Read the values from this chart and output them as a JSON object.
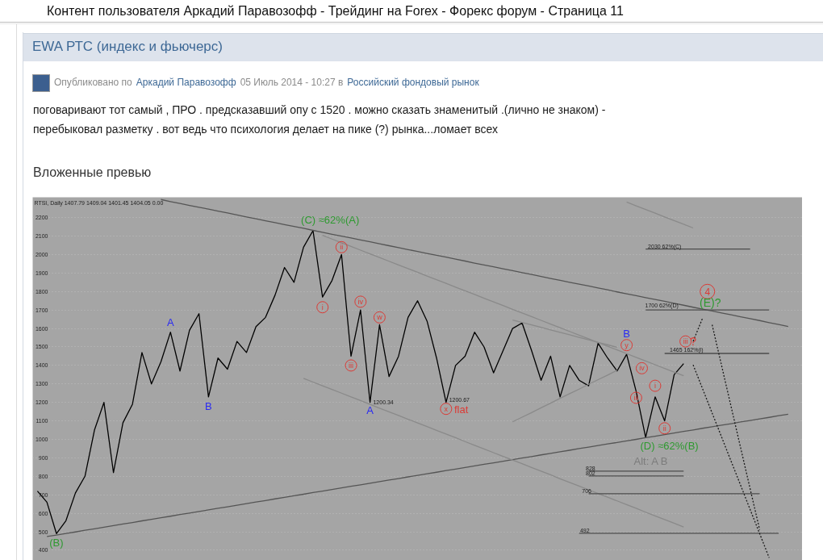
{
  "chart_data": {
    "type": "line",
    "title": "EWA РТС (индекс и фьючерс)",
    "subtitle": "RTSI, Daily 1407.79 1409.04 1401.45 1404.05 0.00",
    "annotations": [
      "Контент пользователя Аркадий Паравозофф - Трейдинг на Forex - Форекс форум - Страница 11",
      "Опубликовано по",
      "Аркадий Паравозофф",
      "05 Июль 2014 - 10:27 в",
      "Российский фондовый рынок",
      "поговаривают тот самый , ПРО . предсказавший опу с 1520 . можно сказать знаменитый .(лично не знаком) -",
      "перебыковал разметку . вот ведь что психология делает на пике (?) рынка...ломает всех",
      "Вложенные превью",
      "(C) ≈62%(A)",
      {
        "text": "i",
        "y": 1715
      },
      {
        "text": "ii",
        "y": 2040
      },
      {
        "text": "iii",
        "y": 1400
      },
      {
        "text": "iv",
        "y": 1745
      },
      {
        "text": "w",
        "y": 1660
      },
      "A",
      "1200.34",
      {
        "text": "x",
        "y": 1165
      },
      "flat",
      "1200.67",
      "(B)",
      "A",
      "B",
      "B",
      {
        "text": "y",
        "y": 1510
      },
      {
        "text": "iii",
        "y": 1225
      },
      {
        "text": "iv",
        "y": 1385
      },
      {
        "text": "i",
        "y": 1290
      },
      {
        "text": "ii",
        "y": 1060
      },
      {
        "text": "iii",
        "y": 1530
      },
      {
        "text": "?",
        "y": 1530
      },
      {
        "text": "4",
        "y": 1800
      },
      "(E)?",
      {
        "text": "2030 62%(C)",
        "y": 2045
      },
      {
        "text": "1700 62%(D)",
        "y": 1725
      },
      {
        "text": "1465 162%(i)",
        "y": 1484
      },
      "(D) ≈62%(B)",
      "Alt: A B",
      {
        "text": "828",
        "y": 844
      },
      {
        "text": "802",
        "y": 816
      },
      {
        "text": "706",
        "y": 720
      },
      {
        "text": "492",
        "y": 506
      }
    ],
    "categories": [
      null,
      null,
      null,
      null,
      null,
      null,
      null,
      null,
      null,
      null,
      null,
      null,
      null,
      null,
      null,
      null,
      null,
      null,
      null,
      null,
      null,
      null,
      null,
      null,
      null,
      null,
      null,
      null,
      null,
      null,
      null,
      null,
      null,
      null,
      null,
      null,
      null,
      null,
      null,
      null,
      null,
      null,
      null,
      null,
      null,
      null,
      null,
      null,
      null,
      null,
      null,
      null,
      null,
      null,
      null,
      null,
      null,
      null,
      null,
      null,
      null,
      null,
      null,
      null,
      null,
      null,
      null,
      null,
      null,
      null,
      null,
      null,
      null,
      null,
      null,
      null,
      null,
      null,
      null,
      null,
      null
    ],
    "ylim": [
      345,
      2310
    ],
    "yticks": [
      400,
      500,
      600,
      700,
      800,
      900,
      1000,
      1100,
      1200,
      1300,
      1400,
      1500,
      1600,
      1700,
      1800,
      1900,
      2000,
      2100,
      2200
    ],
    "tick_labels": "y",
    "grid": "y",
    "series": [
      {
        "color": "#000000",
        "values": [
          720,
          660,
          490,
          560,
          710,
          800,
          1050,
          1200,
          820,
          1090,
          1190,
          1470,
          1300,
          1420,
          1580,
          1370,
          1590,
          1680,
          1230,
          1440,
          1380,
          1530,
          1470,
          1610,
          1660,
          1780,
          1930,
          1850,
          2040,
          2130,
          1770,
          1860,
          2000,
          1450,
          1700,
          1200,
          1620,
          1340,
          1450,
          1660,
          1750,
          1640,
          1440,
          1200,
          1400,
          1450,
          1580,
          1500,
          1360,
          1480,
          1600,
          1630,
          1480,
          1320,
          1450,
          1230,
          1400,
          1320,
          1290,
          1520,
          1440,
          1370,
          1460,
          1260,
          1010,
          1230,
          1100,
          1350,
          1410,
          null,
          null,
          null,
          null,
          null,
          null,
          null,
          null,
          null,
          null,
          null,
          null
        ]
      },
      {
        "color": "#555555",
        "values": [
          null,
          null,
          null,
          null,
          null,
          null,
          null,
          null,
          null,
          null,
          null,
          null,
          null,
          2298,
          2287,
          2277,
          2266,
          2256,
          2246,
          2235,
          2225,
          2214,
          2204,
          2194,
          2183,
          2173,
          2162,
          2152,
          2142,
          2131,
          2121,
          2110,
          2100,
          2090,
          2079,
          2069,
          2058,
          2048,
          2038,
          2027,
          2017,
          2006,
          1996,
          1986,
          1975,
          1965,
          1954,
          1944,
          1934,
          1923,
          1913,
          1902,
          1892,
          1882,
          1871,
          1861,
          1850,
          1840,
          1830,
          1819,
          1809,
          1798,
          1788,
          1778,
          1767,
          1757,
          1747,
          1736,
          1726,
          1715,
          1705,
          1695,
          1684,
          1674,
          1663,
          1653,
          1643,
          1632,
          1622,
          1611,
          null
        ]
      },
      {
        "color": "#555555",
        "values": [
          null,
          474,
          482,
          491,
          499,
          508,
          516,
          525,
          533,
          542,
          550,
          559,
          567,
          576,
          584,
          593,
          601,
          610,
          618,
          627,
          635,
          644,
          652,
          661,
          669,
          678,
          686,
          695,
          703,
          712,
          720,
          729,
          737,
          746,
          754,
          763,
          771,
          780,
          788,
          797,
          805,
          814,
          822,
          831,
          839,
          848,
          856,
          865,
          873,
          882,
          890,
          899,
          907,
          916,
          924,
          933,
          941,
          950,
          958,
          967,
          975,
          983,
          992,
          1000,
          1009,
          1017,
          1026,
          1034,
          1043,
          1051,
          1060,
          1068,
          1077,
          1085,
          1094,
          1102,
          1111,
          1119,
          1128,
          1136,
          null
        ]
      },
      {
        "color": "#8a8a8a",
        "values": [
          null,
          null,
          null,
          null,
          null,
          null,
          null,
          null,
          null,
          null,
          null,
          null,
          null,
          null,
          null,
          null,
          null,
          null,
          null,
          null,
          null,
          null,
          null,
          null,
          null,
          null,
          null,
          null,
          null,
          null,
          2104,
          2084,
          2064,
          2044,
          2024,
          2004,
          1984,
          1964,
          1944,
          1924,
          1904,
          1884,
          1864,
          1844,
          1824,
          1804,
          1784,
          1764,
          1744,
          1724,
          1704,
          1684,
          1664,
          1644,
          1624,
          1604,
          1584,
          1564,
          1544,
          1524,
          1504,
          1484,
          1464,
          1444,
          1424,
          1404,
          1384,
          1364,
          1344,
          null,
          null,
          null,
          null,
          null,
          null,
          null,
          null,
          null,
          null,
          null,
          null
        ]
      },
      {
        "color": "#8a8a8a",
        "values": [
          null,
          null,
          null,
          null,
          null,
          null,
          null,
          null,
          null,
          null,
          null,
          null,
          null,
          null,
          null,
          null,
          null,
          null,
          null,
          null,
          null,
          null,
          null,
          null,
          null,
          null,
          null,
          null,
          1330,
          1310,
          1290,
          1270,
          1250,
          1230,
          1210,
          1189,
          1169,
          1149,
          1129,
          1109,
          1089,
          1069,
          1049,
          1029,
          1009,
          988,
          968,
          948,
          928,
          908,
          888,
          868,
          848,
          828,
          808,
          787,
          767,
          747,
          727,
          707,
          687,
          667,
          647,
          627,
          606,
          586,
          566,
          546,
          526,
          null,
          null,
          null,
          null,
          null,
          null,
          null,
          null,
          null,
          null,
          null,
          null
        ]
      },
      {
        "color": "#8a8a8a",
        "values": [
          null,
          null,
          null,
          null,
          null,
          null,
          null,
          null,
          null,
          null,
          null,
          null,
          null,
          null,
          null,
          null,
          null,
          null,
          null,
          null,
          null,
          null,
          null,
          null,
          null,
          null,
          null,
          null,
          null,
          null,
          null,
          null,
          null,
          null,
          null,
          null,
          null,
          null,
          null,
          null,
          null,
          null,
          null,
          null,
          null,
          null,
          null,
          null,
          null,
          null,
          1646,
          1633,
          1619,
          1606,
          1592,
          1579,
          1566,
          1552,
          1539,
          1525,
          1512,
          1498,
          null,
          null,
          null,
          null,
          null,
          null,
          null,
          null,
          null,
          null,
          null,
          null,
          null,
          null,
          null,
          null,
          null,
          null,
          null
        ]
      },
      {
        "color": "#8a8a8a",
        "values": [
          null,
          null,
          null,
          null,
          null,
          null,
          null,
          null,
          null,
          null,
          null,
          null,
          null,
          null,
          null,
          null,
          null,
          null,
          null,
          null,
          null,
          null,
          null,
          null,
          null,
          null,
          null,
          null,
          null,
          null,
          null,
          null,
          null,
          null,
          null,
          null,
          null,
          null,
          null,
          null,
          null,
          null,
          null,
          null,
          null,
          null,
          null,
          null,
          null,
          null,
          1095,
          1120,
          1145,
          1171,
          1196,
          1222,
          1247,
          1272,
          1298,
          1323,
          1348,
          1374,
          null,
          null,
          null,
          null,
          null,
          null,
          null,
          null,
          null,
          null,
          null,
          null,
          null,
          null,
          null,
          null,
          null,
          null,
          null
        ]
      },
      {
        "color": "#8a8a8a",
        "values": [
          null,
          null,
          null,
          null,
          null,
          null,
          null,
          null,
          null,
          null,
          null,
          null,
          null,
          null,
          null,
          null,
          null,
          null,
          null,
          null,
          null,
          null,
          null,
          null,
          null,
          null,
          null,
          null,
          null,
          null,
          null,
          null,
          null,
          null,
          null,
          null,
          null,
          null,
          null,
          null,
          null,
          null,
          null,
          null,
          null,
          null,
          null,
          null,
          null,
          null,
          null,
          null,
          null,
          null,
          null,
          null,
          null,
          null,
          null,
          null,
          null,
          null,
          2284,
          2264,
          2244,
          2224,
          2204,
          2184,
          2164,
          2144,
          null,
          null,
          null,
          null,
          null,
          null,
          null,
          null,
          null,
          null,
          null
        ]
      },
      {
        "color": "#4d4d4d",
        "values": [
          null,
          null,
          null,
          null,
          null,
          null,
          null,
          null,
          null,
          null,
          null,
          null,
          null,
          null,
          null,
          null,
          null,
          null,
          null,
          null,
          null,
          null,
          null,
          null,
          null,
          null,
          null,
          null,
          null,
          null,
          null,
          null,
          null,
          null,
          null,
          null,
          null,
          null,
          null,
          null,
          null,
          null,
          null,
          null,
          null,
          null,
          null,
          null,
          null,
          null,
          null,
          null,
          null,
          null,
          null,
          null,
          null,
          null,
          null,
          null,
          null,
          null,
          null,
          null,
          2030,
          2030,
          2030,
          2030,
          2030,
          2030,
          2030,
          2030,
          2030,
          2030,
          2030,
          2030,
          null,
          null,
          null,
          null,
          null
        ]
      },
      {
        "color": "#4d4d4d",
        "values": [
          null,
          null,
          null,
          null,
          null,
          null,
          null,
          null,
          null,
          null,
          null,
          null,
          null,
          null,
          null,
          null,
          null,
          null,
          null,
          null,
          null,
          null,
          null,
          null,
          null,
          null,
          null,
          null,
          null,
          null,
          null,
          null,
          null,
          null,
          null,
          null,
          null,
          null,
          null,
          null,
          null,
          null,
          null,
          null,
          null,
          null,
          null,
          null,
          null,
          null,
          null,
          null,
          null,
          null,
          null,
          null,
          null,
          null,
          null,
          null,
          null,
          null,
          null,
          null,
          1700,
          1700,
          1700,
          1700,
          1700,
          1700,
          1700,
          1700,
          1700,
          1700,
          1700,
          1700,
          1700,
          1700,
          null,
          null,
          null
        ]
      },
      {
        "color": "#4d4d4d",
        "values": [
          null,
          null,
          null,
          null,
          null,
          null,
          null,
          null,
          null,
          null,
          null,
          null,
          null,
          null,
          null,
          null,
          null,
          null,
          null,
          null,
          null,
          null,
          null,
          null,
          null,
          null,
          null,
          null,
          null,
          null,
          null,
          null,
          null,
          null,
          null,
          null,
          null,
          null,
          null,
          null,
          null,
          null,
          null,
          null,
          null,
          null,
          null,
          null,
          null,
          null,
          null,
          null,
          null,
          null,
          null,
          null,
          null,
          null,
          null,
          null,
          null,
          null,
          null,
          null,
          null,
          null,
          1465,
          1465,
          1465,
          1465,
          1465,
          1465,
          1465,
          1465,
          1465,
          1465,
          1465,
          1465,
          null,
          null,
          null
        ]
      },
      {
        "color": "#4d4d4d",
        "values": [
          null,
          null,
          null,
          null,
          null,
          null,
          null,
          null,
          null,
          null,
          null,
          null,
          null,
          null,
          null,
          null,
          null,
          null,
          null,
          null,
          null,
          null,
          null,
          null,
          null,
          null,
          null,
          null,
          null,
          null,
          null,
          null,
          null,
          null,
          null,
          null,
          null,
          null,
          null,
          null,
          null,
          null,
          null,
          null,
          null,
          null,
          null,
          null,
          null,
          null,
          null,
          null,
          null,
          null,
          null,
          null,
          null,
          null,
          828,
          828,
          828,
          828,
          828,
          828,
          828,
          828,
          828,
          828,
          828,
          null,
          null,
          null,
          null,
          null,
          null,
          null,
          null,
          null,
          null,
          null,
          null
        ]
      },
      {
        "color": "#4d4d4d",
        "values": [
          null,
          null,
          null,
          null,
          null,
          null,
          null,
          null,
          null,
          null,
          null,
          null,
          null,
          null,
          null,
          null,
          null,
          null,
          null,
          null,
          null,
          null,
          null,
          null,
          null,
          null,
          null,
          null,
          null,
          null,
          null,
          null,
          null,
          null,
          null,
          null,
          null,
          null,
          null,
          null,
          null,
          null,
          null,
          null,
          null,
          null,
          null,
          null,
          null,
          null,
          null,
          null,
          null,
          null,
          null,
          null,
          null,
          null,
          802,
          802,
          802,
          802,
          802,
          802,
          802,
          802,
          802,
          802,
          802,
          null,
          null,
          null,
          null,
          null,
          null,
          null,
          null,
          null,
          null,
          null,
          null
        ]
      },
      {
        "color": "#4d4d4d",
        "values": [
          null,
          null,
          null,
          null,
          null,
          null,
          null,
          null,
          null,
          null,
          null,
          null,
          null,
          null,
          null,
          null,
          null,
          null,
          null,
          null,
          null,
          null,
          null,
          null,
          null,
          null,
          null,
          null,
          null,
          null,
          null,
          null,
          null,
          null,
          null,
          null,
          null,
          null,
          null,
          null,
          null,
          null,
          null,
          null,
          null,
          null,
          null,
          null,
          null,
          null,
          null,
          null,
          null,
          null,
          null,
          null,
          null,
          null,
          706,
          706,
          706,
          706,
          706,
          706,
          706,
          706,
          706,
          706,
          706,
          706,
          706,
          706,
          706,
          706,
          706,
          706,
          706,
          null,
          null,
          null,
          null
        ]
      },
      {
        "color": "#4d4d4d",
        "values": [
          null,
          null,
          null,
          null,
          null,
          null,
          null,
          null,
          null,
          null,
          null,
          null,
          null,
          null,
          null,
          null,
          null,
          null,
          null,
          null,
          null,
          null,
          null,
          null,
          null,
          null,
          null,
          null,
          null,
          null,
          null,
          null,
          null,
          null,
          null,
          null,
          null,
          null,
          null,
          null,
          null,
          null,
          null,
          null,
          null,
          null,
          null,
          null,
          null,
          null,
          null,
          null,
          null,
          null,
          null,
          null,
          null,
          492,
          492,
          492,
          492,
          492,
          492,
          492,
          492,
          492,
          492,
          492,
          492,
          492,
          492,
          492,
          492,
          492,
          492,
          492,
          492,
          492,
          492,
          null,
          null
        ]
      },
      {
        "color": "#1a1a1a",
        "line_style": "dotted",
        "values": [
          null,
          null,
          null,
          null,
          null,
          null,
          null,
          null,
          null,
          null,
          null,
          null,
          null,
          null,
          null,
          null,
          null,
          null,
          null,
          null,
          null,
          null,
          null,
          null,
          null,
          null,
          null,
          null,
          null,
          null,
          null,
          null,
          null,
          null,
          null,
          null,
          null,
          null,
          null,
          null,
          null,
          null,
          null,
          null,
          null,
          null,
          null,
          null,
          null,
          null,
          null,
          null,
          null,
          null,
          null,
          null,
          null,
          null,
          null,
          null,
          null,
          null,
          null,
          null,
          null,
          null,
          null,
          null,
          null,
          1531,
          1657,
          null,
          null,
          null,
          null,
          null,
          null,
          null,
          null,
          null,
          null
        ]
      },
      {
        "color": "#1a1a1a",
        "line_style": "dotted",
        "values": [
          null,
          null,
          null,
          null,
          null,
          null,
          null,
          null,
          null,
          null,
          null,
          null,
          null,
          null,
          null,
          null,
          null,
          null,
          null,
          null,
          null,
          null,
          null,
          null,
          null,
          null,
          null,
          null,
          null,
          null,
          null,
          null,
          null,
          null,
          null,
          null,
          null,
          null,
          null,
          null,
          null,
          null,
          null,
          null,
          null,
          null,
          null,
          null,
          null,
          null,
          null,
          null,
          null,
          null,
          null,
          null,
          null,
          null,
          null,
          null,
          null,
          null,
          null,
          null,
          null,
          null,
          null,
          null,
          null,
          1403,
          1273,
          1142,
          1012,
          881,
          751,
          620,
          490,
          359,
          null,
          null,
          null
        ]
      },
      {
        "color": "#1a1a1a",
        "line_style": "dotted",
        "values": [
          null,
          null,
          null,
          null,
          null,
          null,
          null,
          null,
          null,
          null,
          null,
          null,
          null,
          null,
          null,
          null,
          null,
          null,
          null,
          null,
          null,
          null,
          null,
          null,
          null,
          null,
          null,
          null,
          null,
          null,
          null,
          null,
          null,
          null,
          null,
          null,
          null,
          null,
          null,
          null,
          null,
          null,
          null,
          null,
          null,
          null,
          null,
          null,
          null,
          null,
          null,
          null,
          null,
          null,
          null,
          null,
          null,
          null,
          null,
          null,
          null,
          null,
          null,
          null,
          null,
          null,
          null,
          null,
          null,
          null,
          null,
          1620,
          1398,
          1176,
          954,
          732,
          511,
          null,
          null,
          null,
          null
        ]
      }
    ]
  }
}
